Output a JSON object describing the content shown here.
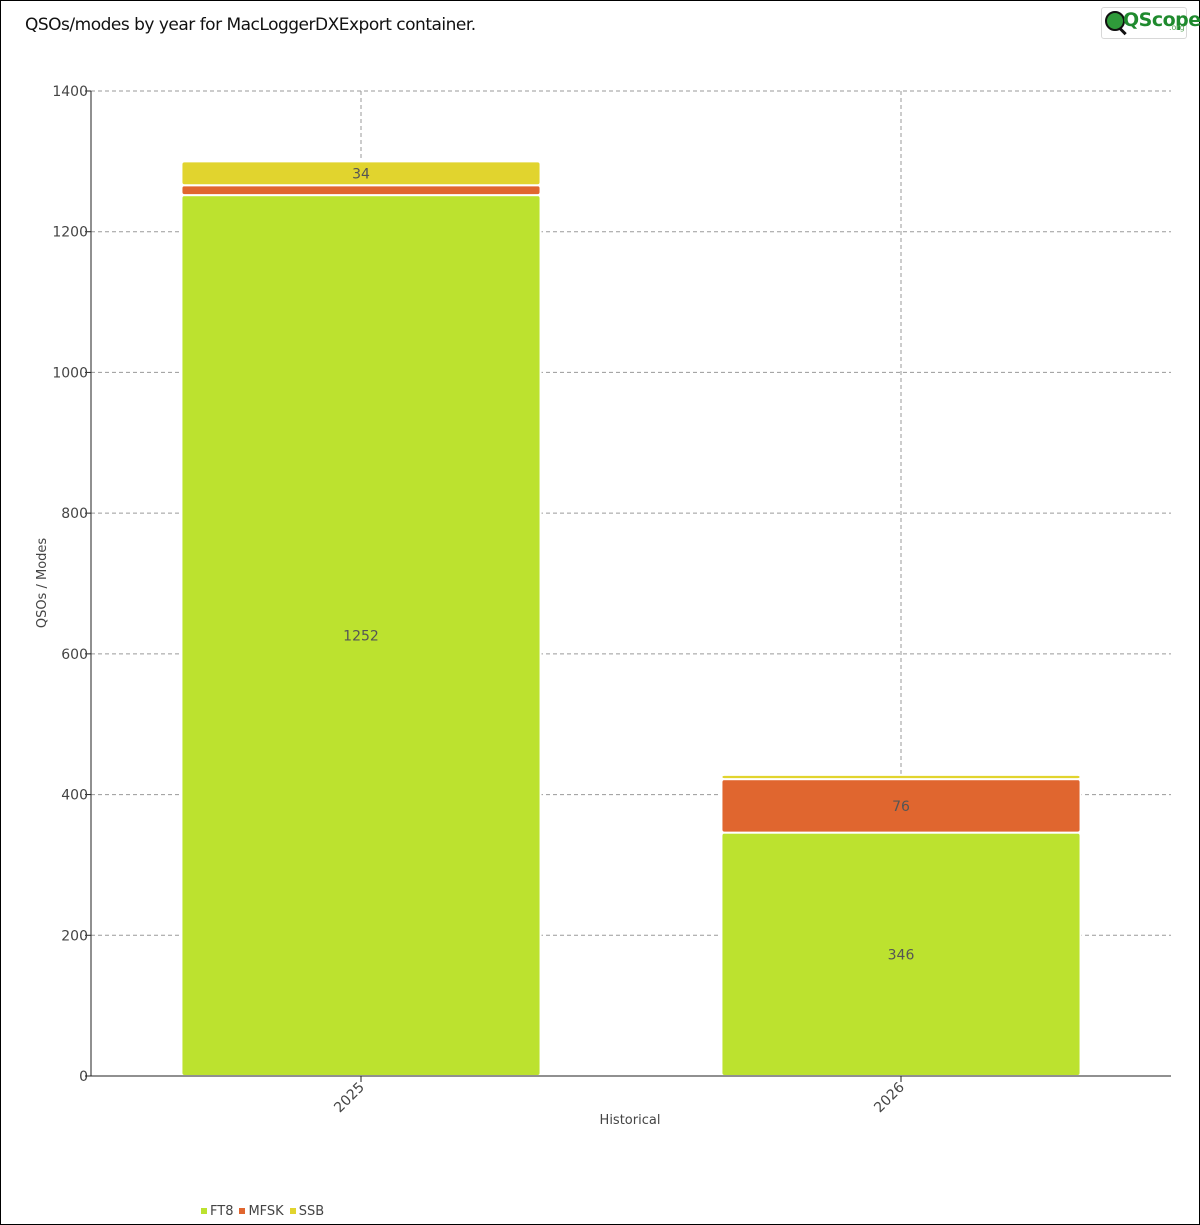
{
  "title": "QSOs/modes by year for MacLoggerDXExport container.",
  "logo": {
    "word": "QScope",
    "tld": ".org"
  },
  "chart_data": {
    "type": "bar",
    "stacked": true,
    "categories": [
      "2025",
      "2026"
    ],
    "series": [
      {
        "name": "FT8",
        "values": [
          1252,
          346
        ],
        "color": "#bce22f"
      },
      {
        "name": "MFSK",
        "values": [
          14,
          76
        ],
        "color": "#e0662f"
      },
      {
        "name": "SSB",
        "values": [
          34,
          6
        ],
        "color": "#e1d42e"
      }
    ],
    "data_labels": [
      {
        "series": "FT8",
        "category": "2025",
        "text": "1252"
      },
      {
        "series": "SSB",
        "category": "2025",
        "text": "34"
      },
      {
        "series": "FT8",
        "category": "2026",
        "text": "346"
      },
      {
        "series": "MFSK",
        "category": "2026",
        "text": "76"
      }
    ],
    "xlabel": "Historical",
    "ylabel": "QSOs / Modes",
    "ylim": [
      0,
      1400
    ],
    "yticks": [
      0,
      200,
      400,
      600,
      800,
      1000,
      1200,
      1400
    ],
    "grid": true,
    "legend_position": "bottom-left"
  }
}
